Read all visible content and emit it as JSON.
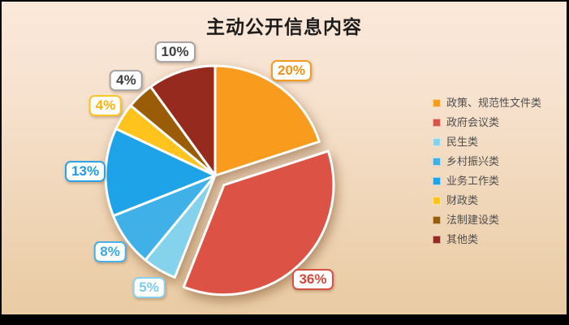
{
  "title": "主动公开信息内容",
  "chart_data": {
    "type": "pie",
    "title": "主动公开信息内容",
    "legend_position": "right",
    "start_angle_deg": 0,
    "direction": "clockwise",
    "slices": [
      {
        "label": "政策、规范性文件类",
        "value": 20,
        "pct_label": "20%",
        "color": "#F99B1C",
        "callout_text": "#F1921B",
        "callout_border": "#F59B22",
        "exploded": false
      },
      {
        "label": "政府会议类",
        "value": 36,
        "pct_label": "36%",
        "color": "#DC5244",
        "callout_text": "#D4493C",
        "callout_border": "#D85042",
        "exploded": true
      },
      {
        "label": "民生类",
        "value": 5,
        "pct_label": "5%",
        "color": "#85D2EC",
        "callout_text": "#7CCBE9",
        "callout_border": "#8AD3EE",
        "exploded": false
      },
      {
        "label": "乡村振兴类",
        "value": 8,
        "pct_label": "8%",
        "color": "#3FB0E8",
        "callout_text": "#3AA8E4",
        "callout_border": "#47B0E8",
        "exploded": false
      },
      {
        "label": "业务工作类",
        "value": 13,
        "pct_label": "13%",
        "color": "#1FA3E8",
        "callout_text": "#2299DF",
        "callout_border": "#2FA2E4",
        "exploded": false
      },
      {
        "label": "财政类",
        "value": 4,
        "pct_label": "4%",
        "color": "#FEC31D",
        "callout_text": "#F7B40D",
        "callout_border": "#FDC520",
        "exploded": false
      },
      {
        "label": "法制建设类",
        "value": 4,
        "pct_label": "4%",
        "color": "#9A5C06",
        "callout_text": "#3F3F3F",
        "callout_border": "#A6A6A6",
        "exploded": false
      },
      {
        "label": "其他类",
        "value": 10,
        "pct_label": "10%",
        "color": "#962A1E",
        "callout_text": "#3F3F3F",
        "callout_border": "#A6A6A6",
        "exploded": false
      }
    ]
  }
}
